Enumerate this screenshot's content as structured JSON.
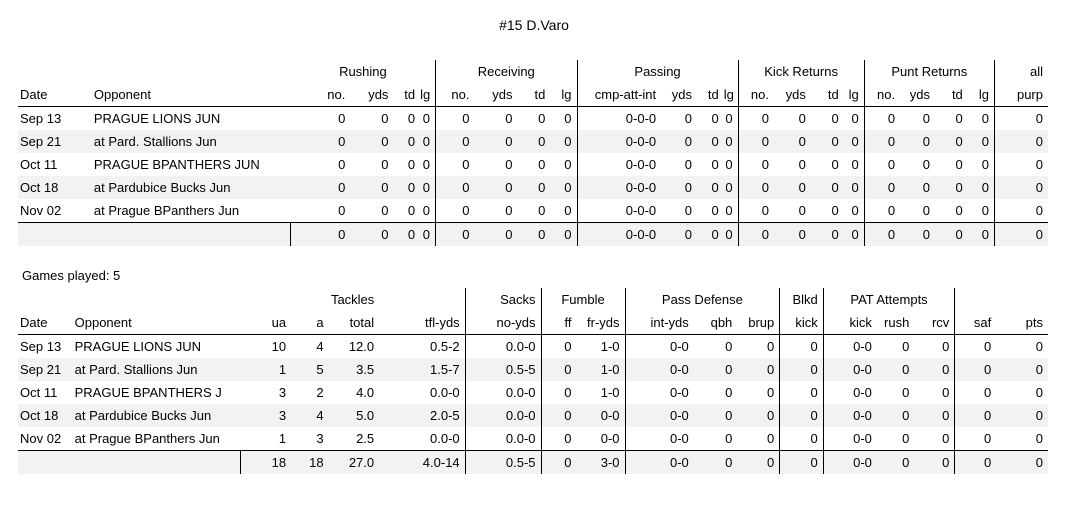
{
  "title": "#15 D.Varo",
  "offense": {
    "groups": [
      "Rushing",
      "Receiving",
      "Passing",
      "Kick Returns",
      "Punt Returns",
      "all"
    ],
    "columns": [
      "Date",
      "Opponent",
      "no.",
      "yds",
      "td",
      "lg",
      "no.",
      "yds",
      "td",
      "lg",
      "cmp-att-int",
      "yds",
      "td",
      "lg",
      "no.",
      "yds",
      "td",
      "lg",
      "no.",
      "yds",
      "td",
      "lg",
      "purp"
    ],
    "rows": [
      [
        "Sep 13",
        "PRAGUE LIONS JUN",
        "0",
        "0",
        "0",
        "0",
        "0",
        "0",
        "0",
        "0",
        "0-0-0",
        "0",
        "0",
        "0",
        "0",
        "0",
        "0",
        "0",
        "0",
        "0",
        "0",
        "0",
        "0"
      ],
      [
        "Sep 21",
        "at Pard. Stallions Jun",
        "0",
        "0",
        "0",
        "0",
        "0",
        "0",
        "0",
        "0",
        "0-0-0",
        "0",
        "0",
        "0",
        "0",
        "0",
        "0",
        "0",
        "0",
        "0",
        "0",
        "0",
        "0"
      ],
      [
        "Oct 11",
        "PRAGUE BPANTHERS JUN",
        "0",
        "0",
        "0",
        "0",
        "0",
        "0",
        "0",
        "0",
        "0-0-0",
        "0",
        "0",
        "0",
        "0",
        "0",
        "0",
        "0",
        "0",
        "0",
        "0",
        "0",
        "0"
      ],
      [
        "Oct 18",
        "at Pardubice Bucks Jun",
        "0",
        "0",
        "0",
        "0",
        "0",
        "0",
        "0",
        "0",
        "0-0-0",
        "0",
        "0",
        "0",
        "0",
        "0",
        "0",
        "0",
        "0",
        "0",
        "0",
        "0",
        "0"
      ],
      [
        "Nov 02",
        "at Prague BPanthers Jun",
        "0",
        "0",
        "0",
        "0",
        "0",
        "0",
        "0",
        "0",
        "0-0-0",
        "0",
        "0",
        "0",
        "0",
        "0",
        "0",
        "0",
        "0",
        "0",
        "0",
        "0",
        "0"
      ]
    ],
    "totals": [
      "",
      "",
      "0",
      "0",
      "0",
      "0",
      "0",
      "0",
      "0",
      "0",
      "0-0-0",
      "0",
      "0",
      "0",
      "0",
      "0",
      "0",
      "0",
      "0",
      "0",
      "0",
      "0",
      "0"
    ]
  },
  "games_played": "Games played: 5",
  "defense": {
    "groups": [
      "Tackles",
      "Sacks",
      "Fumble",
      "Pass Defense",
      "Blkd",
      "PAT Attempts"
    ],
    "columns": [
      "Date",
      "Opponent",
      "ua",
      "a",
      "total",
      "tfl-yds",
      "no-yds",
      "ff",
      "fr-yds",
      "int-yds",
      "qbh",
      "brup",
      "kick",
      "kick",
      "rush",
      "rcv",
      "saf",
      "pts"
    ],
    "rows": [
      [
        "Sep 13",
        "PRAGUE LIONS JUN",
        "10",
        "4",
        "12.0",
        "0.5-2",
        "0.0-0",
        "0",
        "1-0",
        "0-0",
        "0",
        "0",
        "0",
        "0-0",
        "0",
        "0",
        "0",
        "0"
      ],
      [
        "Sep 21",
        "at Pard. Stallions Jun",
        "1",
        "5",
        "3.5",
        "1.5-7",
        "0.5-5",
        "0",
        "1-0",
        "0-0",
        "0",
        "0",
        "0",
        "0-0",
        "0",
        "0",
        "0",
        "0"
      ],
      [
        "Oct 11",
        "PRAGUE BPANTHERS J",
        "3",
        "2",
        "4.0",
        "0.0-0",
        "0.0-0",
        "0",
        "1-0",
        "0-0",
        "0",
        "0",
        "0",
        "0-0",
        "0",
        "0",
        "0",
        "0"
      ],
      [
        "Oct 18",
        "at Pardubice Bucks Jun",
        "3",
        "4",
        "5.0",
        "2.0-5",
        "0.0-0",
        "0",
        "0-0",
        "0-0",
        "0",
        "0",
        "0",
        "0-0",
        "0",
        "0",
        "0",
        "0"
      ],
      [
        "Nov 02",
        "at Prague BPanthers Jun",
        "1",
        "3",
        "2.5",
        "0.0-0",
        "0.0-0",
        "0",
        "0-0",
        "0-0",
        "0",
        "0",
        "0",
        "0-0",
        "0",
        "0",
        "0",
        "0"
      ]
    ],
    "totals": [
      "",
      "",
      "18",
      "18",
      "27.0",
      "4.0-14",
      "0.5-5",
      "0",
      "3-0",
      "0-0",
      "0",
      "0",
      "0",
      "0-0",
      "0",
      "0",
      "0",
      "0"
    ]
  }
}
